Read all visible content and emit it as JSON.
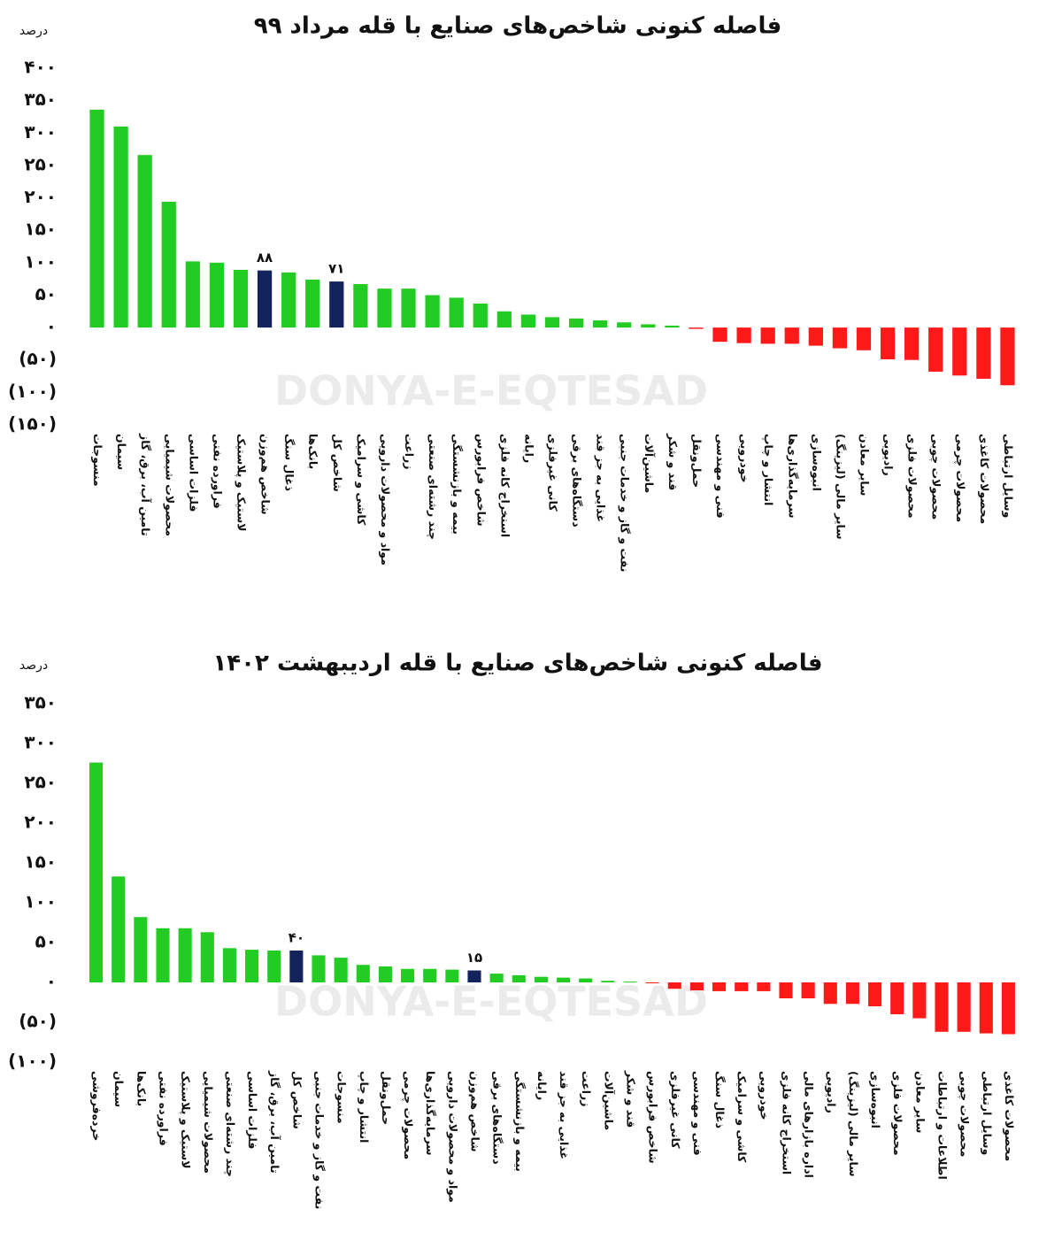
{
  "chart_data": [
    {
      "type": "bar",
      "title": "فاصله کنونی شاخص‌های صنایع با قله مرداد ۹۹",
      "y_label": "درصد",
      "watermark": "DONYA-E-EQTESAD",
      "categories": [
        "منسوجات",
        "سیمان",
        "تامین آب، برق، گاز",
        "محصولات شیمیایی",
        "فلزات اساسی",
        "فراورده نفتی",
        "لاستیک و پلاستیک",
        "شاخص هم‌وزن",
        "ذغال سنگ",
        "بانک‌ها",
        "شاخص کل",
        "کاشی و سرامیک",
        "مواد و محصولات دارویی",
        "زراعت",
        "چند رشته‌ای صنعتی",
        "بیمه و بازنشستگی",
        "شاخص فرابورس",
        "استخراج کانه فلزی",
        "رایانه",
        "کانی غیرفلزی",
        "دستگاه‌های برقی",
        "غذایی به جز قند",
        "نفت و گاز و خدمات جنبی",
        "ماشین‌آلات",
        "قند و شکر",
        "حمل‌ونقل",
        "فنی و مهندسی",
        "خودرویی",
        "انتشار و چاپ",
        "سرمایه‌گذاری‌ها",
        "انبوه‌سازی",
        "سایر مالی (لیزینگ)",
        "سایر معادن",
        "رادیویی",
        "محصولات فلزی",
        "محصولات چوبی",
        "محصولات چرمی",
        "محصولات کاغذی",
        "وسایل ارتباطی"
      ],
      "values": [
        336,
        310,
        266,
        194,
        102,
        100,
        89,
        88,
        85,
        74,
        71,
        67,
        60,
        60,
        50,
        46,
        37,
        25,
        20,
        16,
        14,
        11,
        8,
        5,
        3,
        -2,
        -22,
        -24,
        -25,
        -25,
        -28,
        -32,
        -35,
        -49,
        -50,
        -68,
        -74,
        -79,
        -89
      ],
      "value_labels": [
        null,
        null,
        null,
        null,
        null,
        null,
        null,
        "۸۸",
        null,
        null,
        "۷۱",
        null,
        null,
        null,
        null,
        null,
        null,
        null,
        null,
        null,
        null,
        null,
        null,
        null,
        null,
        null,
        null,
        null,
        null,
        null,
        null,
        null,
        null,
        null,
        null,
        null,
        null,
        null,
        null
      ],
      "colors": [
        "#22cc22",
        "#22cc22",
        "#22cc22",
        "#22cc22",
        "#22cc22",
        "#22cc22",
        "#22cc22",
        "#13235b",
        "#22cc22",
        "#22cc22",
        "#13235b",
        "#22cc22",
        "#22cc22",
        "#22cc22",
        "#22cc22",
        "#22cc22",
        "#22cc22",
        "#22cc22",
        "#22cc22",
        "#22cc22",
        "#22cc22",
        "#22cc22",
        "#22cc22",
        "#22cc22",
        "#22cc22",
        "#ff1a1a",
        "#ff1a1a",
        "#ff1a1a",
        "#ff1a1a",
        "#ff1a1a",
        "#ff1a1a",
        "#ff1a1a",
        "#ff1a1a",
        "#ff1a1a",
        "#ff1a1a",
        "#ff1a1a",
        "#ff1a1a",
        "#ff1a1a",
        "#ff1a1a"
      ],
      "ylim": [
        -150,
        400
      ],
      "yticks": [
        {
          "value": 400,
          "label": "۴۰۰"
        },
        {
          "value": 350,
          "label": "۳۵۰"
        },
        {
          "value": 300,
          "label": "۳۰۰"
        },
        {
          "value": 250,
          "label": "۲۵۰"
        },
        {
          "value": 200,
          "label": "۲۰۰"
        },
        {
          "value": 150,
          "label": "۱۵۰"
        },
        {
          "value": 100,
          "label": "۱۰۰"
        },
        {
          "value": 50,
          "label": "۵۰"
        },
        {
          "value": 0,
          "label": "۰"
        },
        {
          "value": -50,
          "label": "(۵۰)"
        },
        {
          "value": -100,
          "label": "(۱۰۰)"
        },
        {
          "value": -150,
          "label": "(۱۵۰)"
        }
      ],
      "grid": false
    },
    {
      "type": "bar",
      "title": "فاصله کنونی شاخص‌های صنایع با قله اردیبهشت ۱۴۰۲",
      "y_label": "درصد",
      "watermark": "DONYA-E-EQTESAD",
      "categories": [
        "خرده‌فروشی",
        "سیمان",
        "بانک‌ها",
        "فراورده نفتی",
        "لاستیک و پلاستیک",
        "محصولات شیمیایی",
        "چند رشته‌ای صنعتی",
        "فلزات اساسی",
        "تامین آب، برق، گاز",
        "شاخص کل",
        "نفت و گاز و خدمات جنبی",
        "منسوجات",
        "انتشار و چاپ",
        "حمل‌ونقل",
        "محصولات چرمی",
        "سرمایه‌گذاری‌ها",
        "مواد و محصولات دارویی",
        "شاخص هم‌وزن",
        "دستگاه‌های برقی",
        "بیمه و بازنشستگی",
        "رایانه",
        "غذایی به جز قند",
        "زراعت",
        "ماشین‌آلات",
        "قند و شکر",
        "شاخص فرابورس",
        "کانی غیرفلزی",
        "فنی و مهندسی",
        "ذغال سنگ",
        "کاشی و سرامیک",
        "خودرویی",
        "استخراج کانه فلزی",
        "اداره بازارهای مالی",
        "رادیویی",
        "سایر مالی (لیزینگ)",
        "انبوه‌سازی",
        "محصولات فلزی",
        "سایر معادن",
        "اطلاعات و ارتباطات",
        "محصولات چوبی",
        "وسایل ارتباطی",
        "محصولات کاغذی"
      ],
      "values": [
        276,
        133,
        82,
        68,
        68,
        63,
        43,
        41,
        40,
        40,
        34,
        31,
        22,
        20,
        17,
        17,
        16,
        15,
        11,
        9,
        7,
        6,
        5,
        2,
        1,
        -1,
        -8,
        -10,
        -11,
        -11,
        -11,
        -20,
        -20,
        -27,
        -27,
        -30,
        -40,
        -45,
        -62,
        -62,
        -64,
        -65
      ],
      "value_labels": [
        null,
        null,
        null,
        null,
        null,
        null,
        null,
        null,
        null,
        "۴۰",
        null,
        null,
        null,
        null,
        null,
        null,
        null,
        "۱۵",
        null,
        null,
        null,
        null,
        null,
        null,
        null,
        null,
        null,
        null,
        null,
        null,
        null,
        null,
        null,
        null,
        null,
        null,
        null,
        null,
        null,
        null,
        null,
        null
      ],
      "colors": [
        "#22cc22",
        "#22cc22",
        "#22cc22",
        "#22cc22",
        "#22cc22",
        "#22cc22",
        "#22cc22",
        "#22cc22",
        "#22cc22",
        "#13235b",
        "#22cc22",
        "#22cc22",
        "#22cc22",
        "#22cc22",
        "#22cc22",
        "#22cc22",
        "#22cc22",
        "#13235b",
        "#22cc22",
        "#22cc22",
        "#22cc22",
        "#22cc22",
        "#22cc22",
        "#22cc22",
        "#22cc22",
        "#ff1a1a",
        "#ff1a1a",
        "#ff1a1a",
        "#ff1a1a",
        "#ff1a1a",
        "#ff1a1a",
        "#ff1a1a",
        "#ff1a1a",
        "#ff1a1a",
        "#ff1a1a",
        "#ff1a1a",
        "#ff1a1a",
        "#ff1a1a",
        "#ff1a1a",
        "#ff1a1a",
        "#ff1a1a",
        "#ff1a1a"
      ],
      "ylim": [
        -100,
        350
      ],
      "yticks": [
        {
          "value": 350,
          "label": "۳۵۰"
        },
        {
          "value": 300,
          "label": "۳۰۰"
        },
        {
          "value": 250,
          "label": "۲۵۰"
        },
        {
          "value": 200,
          "label": "۲۰۰"
        },
        {
          "value": 150,
          "label": "۱۵۰"
        },
        {
          "value": 100,
          "label": "۱۰۰"
        },
        {
          "value": 50,
          "label": "۵۰"
        },
        {
          "value": 0,
          "label": "۰"
        },
        {
          "value": -50,
          "label": "(۵۰)"
        },
        {
          "value": -100,
          "label": "(۱۰۰)"
        }
      ],
      "grid": false
    }
  ]
}
